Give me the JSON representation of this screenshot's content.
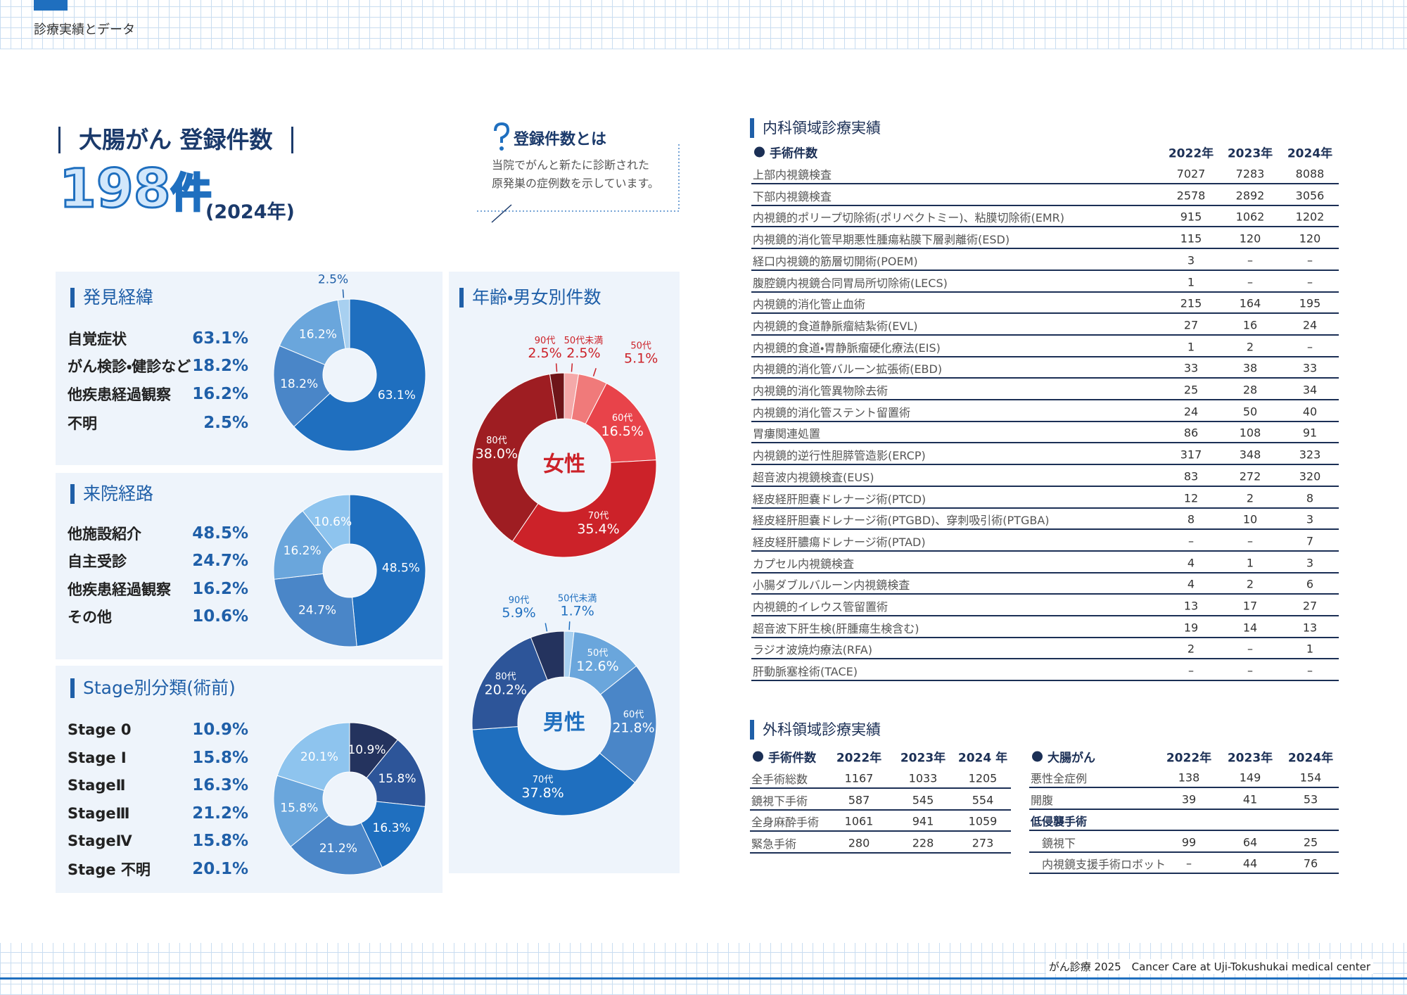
{
  "header": {
    "section": "診療実績とデータ"
  },
  "registration": {
    "title": "大腸がん 登録件数",
    "count": 198,
    "unit": "件",
    "year": "(2024年)"
  },
  "note": {
    "title": "登録件数とは",
    "lines": [
      "当院でがんと新たに診断された",
      "原発巣の症例数を示しています。"
    ]
  },
  "chart_data": [
    {
      "type": "donut",
      "title": "発見経緯",
      "categories": [
        "自覚症状",
        "がん検診・健診など",
        "他疾患経過観察",
        "不明"
      ],
      "values": [
        63.1,
        18.2,
        16.2,
        2.5
      ],
      "value_labels": [
        "63.1%",
        "18.2%",
        "16.2%",
        "2.5%"
      ],
      "colors": [
        "#1f6fbf",
        "#4a86c8",
        "#6aa6dc",
        "#a8d0f0"
      ]
    },
    {
      "type": "donut",
      "title": "来院経路",
      "categories": [
        "他施設紹介",
        "自主受診",
        "他疾患経過観察",
        "その他"
      ],
      "values": [
        48.5,
        24.7,
        16.2,
        10.6
      ],
      "value_labels": [
        "48.5%",
        "24.7%",
        "16.2%",
        "10.6%"
      ],
      "colors": [
        "#1f6fbf",
        "#4a86c8",
        "#6aa6dc",
        "#8ec4ee"
      ]
    },
    {
      "type": "donut",
      "title": "Stage別分類(術前)",
      "categories": [
        "Stage 0",
        "Stage Ⅰ",
        "StageⅡ",
        "StageⅢ",
        "StageⅣ",
        "Stage 不明"
      ],
      "values": [
        10.9,
        15.8,
        16.3,
        21.2,
        15.8,
        20.1
      ],
      "value_labels": [
        "10.9%",
        "15.8%",
        "16.3%",
        "21.2%",
        "15.8%",
        "20.1%"
      ],
      "colors": [
        "#24335e",
        "#2d5599",
        "#1f6fbf",
        "#4a86c8",
        "#6aa6dc",
        "#8ec4ee"
      ]
    },
    {
      "type": "donut",
      "title": "年齢・男女別件数",
      "center_label": "女性",
      "categories": [
        "50代未満",
        "50代",
        "60代",
        "70代",
        "80代",
        "90代"
      ],
      "values": [
        2.5,
        5.1,
        16.5,
        35.4,
        38.0,
        2.5
      ],
      "value_labels": [
        "2.5%",
        "5.1%",
        "16.5%",
        "35.4%",
        "38.0%",
        "2.5%"
      ],
      "colors": [
        "#f4a9a9",
        "#f07a7a",
        "#e8434a",
        "#cc2229",
        "#9e1d22",
        "#6e1519"
      ]
    },
    {
      "type": "donut",
      "center_label": "男性",
      "categories": [
        "50代未満",
        "50代",
        "60代",
        "70代",
        "80代",
        "90代"
      ],
      "values": [
        1.7,
        12.6,
        21.8,
        37.8,
        20.2,
        5.9
      ],
      "value_labels": [
        "1.7%",
        "12.6%",
        "21.8%",
        "37.8%",
        "20.2%",
        "5.9%"
      ],
      "colors": [
        "#a8d0f0",
        "#6aa6dc",
        "#4a86c8",
        "#1f6fbf",
        "#2d5599",
        "#24335e"
      ]
    }
  ],
  "internal_medicine": {
    "title": "内科領域診療実績",
    "subtitle": "手術件数",
    "columns": [
      "2022年",
      "2023年",
      "2024年"
    ],
    "rows": [
      [
        "上部内視鏡検査",
        7027,
        7283,
        8088
      ],
      [
        "下部内視鏡検査",
        2578,
        2892,
        3056
      ],
      [
        "内視鏡的ポリープ切除術(ポリペクトミー)、粘膜切除術(EMR)",
        915,
        1062,
        1202
      ],
      [
        "内視鏡的消化管早期悪性腫瘍粘膜下層剥離術(ESD)",
        115,
        120,
        120
      ],
      [
        "経口内視鏡的筋層切開術(POEM)",
        3,
        "–",
        "–"
      ],
      [
        "腹腔鏡内視鏡合同胃局所切除術(LECS)",
        1,
        "–",
        "–"
      ],
      [
        "内視鏡的消化管止血術",
        215,
        164,
        195
      ],
      [
        "内視鏡的食道静脈瘤結紮術(EVL)",
        27,
        16,
        24
      ],
      [
        "内視鏡的食道・胃静脈瘤硬化療法(EIS)",
        1,
        2,
        "–"
      ],
      [
        "内視鏡的消化管バルーン拡張術(EBD)",
        33,
        38,
        33
      ],
      [
        "内視鏡的消化管異物除去術",
        25,
        28,
        34
      ],
      [
        "内視鏡的消化管ステント留置術",
        24,
        50,
        40
      ],
      [
        "胃瘻関連処置",
        86,
        108,
        91
      ],
      [
        "内視鏡的逆行性胆膵管造影(ERCP)",
        317,
        348,
        323
      ],
      [
        "超音波内視鏡検査(EUS)",
        83,
        272,
        320
      ],
      [
        "経皮経肝胆嚢ドレナージ術(PTCD)",
        12,
        2,
        8
      ],
      [
        "経皮経肝胆嚢ドレナージ術(PTGBD)、穿刺吸引術(PTGBA)",
        8,
        10,
        3
      ],
      [
        "経皮経肝膿瘍ドレナージ術(PTAD)",
        "–",
        "–",
        7
      ],
      [
        "カプセル内視鏡検査",
        4,
        1,
        3
      ],
      [
        "小腸ダブルバルーン内視鏡検査",
        4,
        2,
        6
      ],
      [
        "内視鏡的イレウス管留置術",
        13,
        17,
        27
      ],
      [
        "超音波下肝生検(肝腫瘍生検含む)",
        19,
        14,
        13
      ],
      [
        "ラジオ波焼灼療法(RFA)",
        2,
        "–",
        1
      ],
      [
        "肝動脈塞栓術(TACE)",
        "–",
        "–",
        "–"
      ]
    ]
  },
  "surgery": {
    "title": "外科領域診療実績",
    "tables": [
      {
        "subtitle": "手術件数",
        "columns": [
          "2022年",
          "2023年",
          "2024 年"
        ],
        "rows": [
          [
            "全手術総数",
            1167,
            1033,
            1205
          ],
          [
            "鏡視下手術",
            587,
            545,
            554
          ],
          [
            "全身麻酔手術",
            1061,
            941,
            1059
          ],
          [
            "緊急手術",
            280,
            228,
            273
          ]
        ]
      },
      {
        "subtitle": "大腸がん",
        "columns": [
          "2022年",
          "2023年",
          "2024年"
        ],
        "rows": [
          [
            "悪性全症例",
            138,
            149,
            154
          ],
          [
            "開腹",
            39,
            41,
            53
          ],
          [
            "低侵襲手術"
          ],
          [
            "鏡視下",
            99,
            64,
            25
          ],
          [
            "内視鏡支援手術ロボット",
            "–",
            44,
            76
          ]
        ]
      }
    ]
  },
  "footer": "がん診療 2025　Cancer Care at Uji-Tokushukai medical center"
}
